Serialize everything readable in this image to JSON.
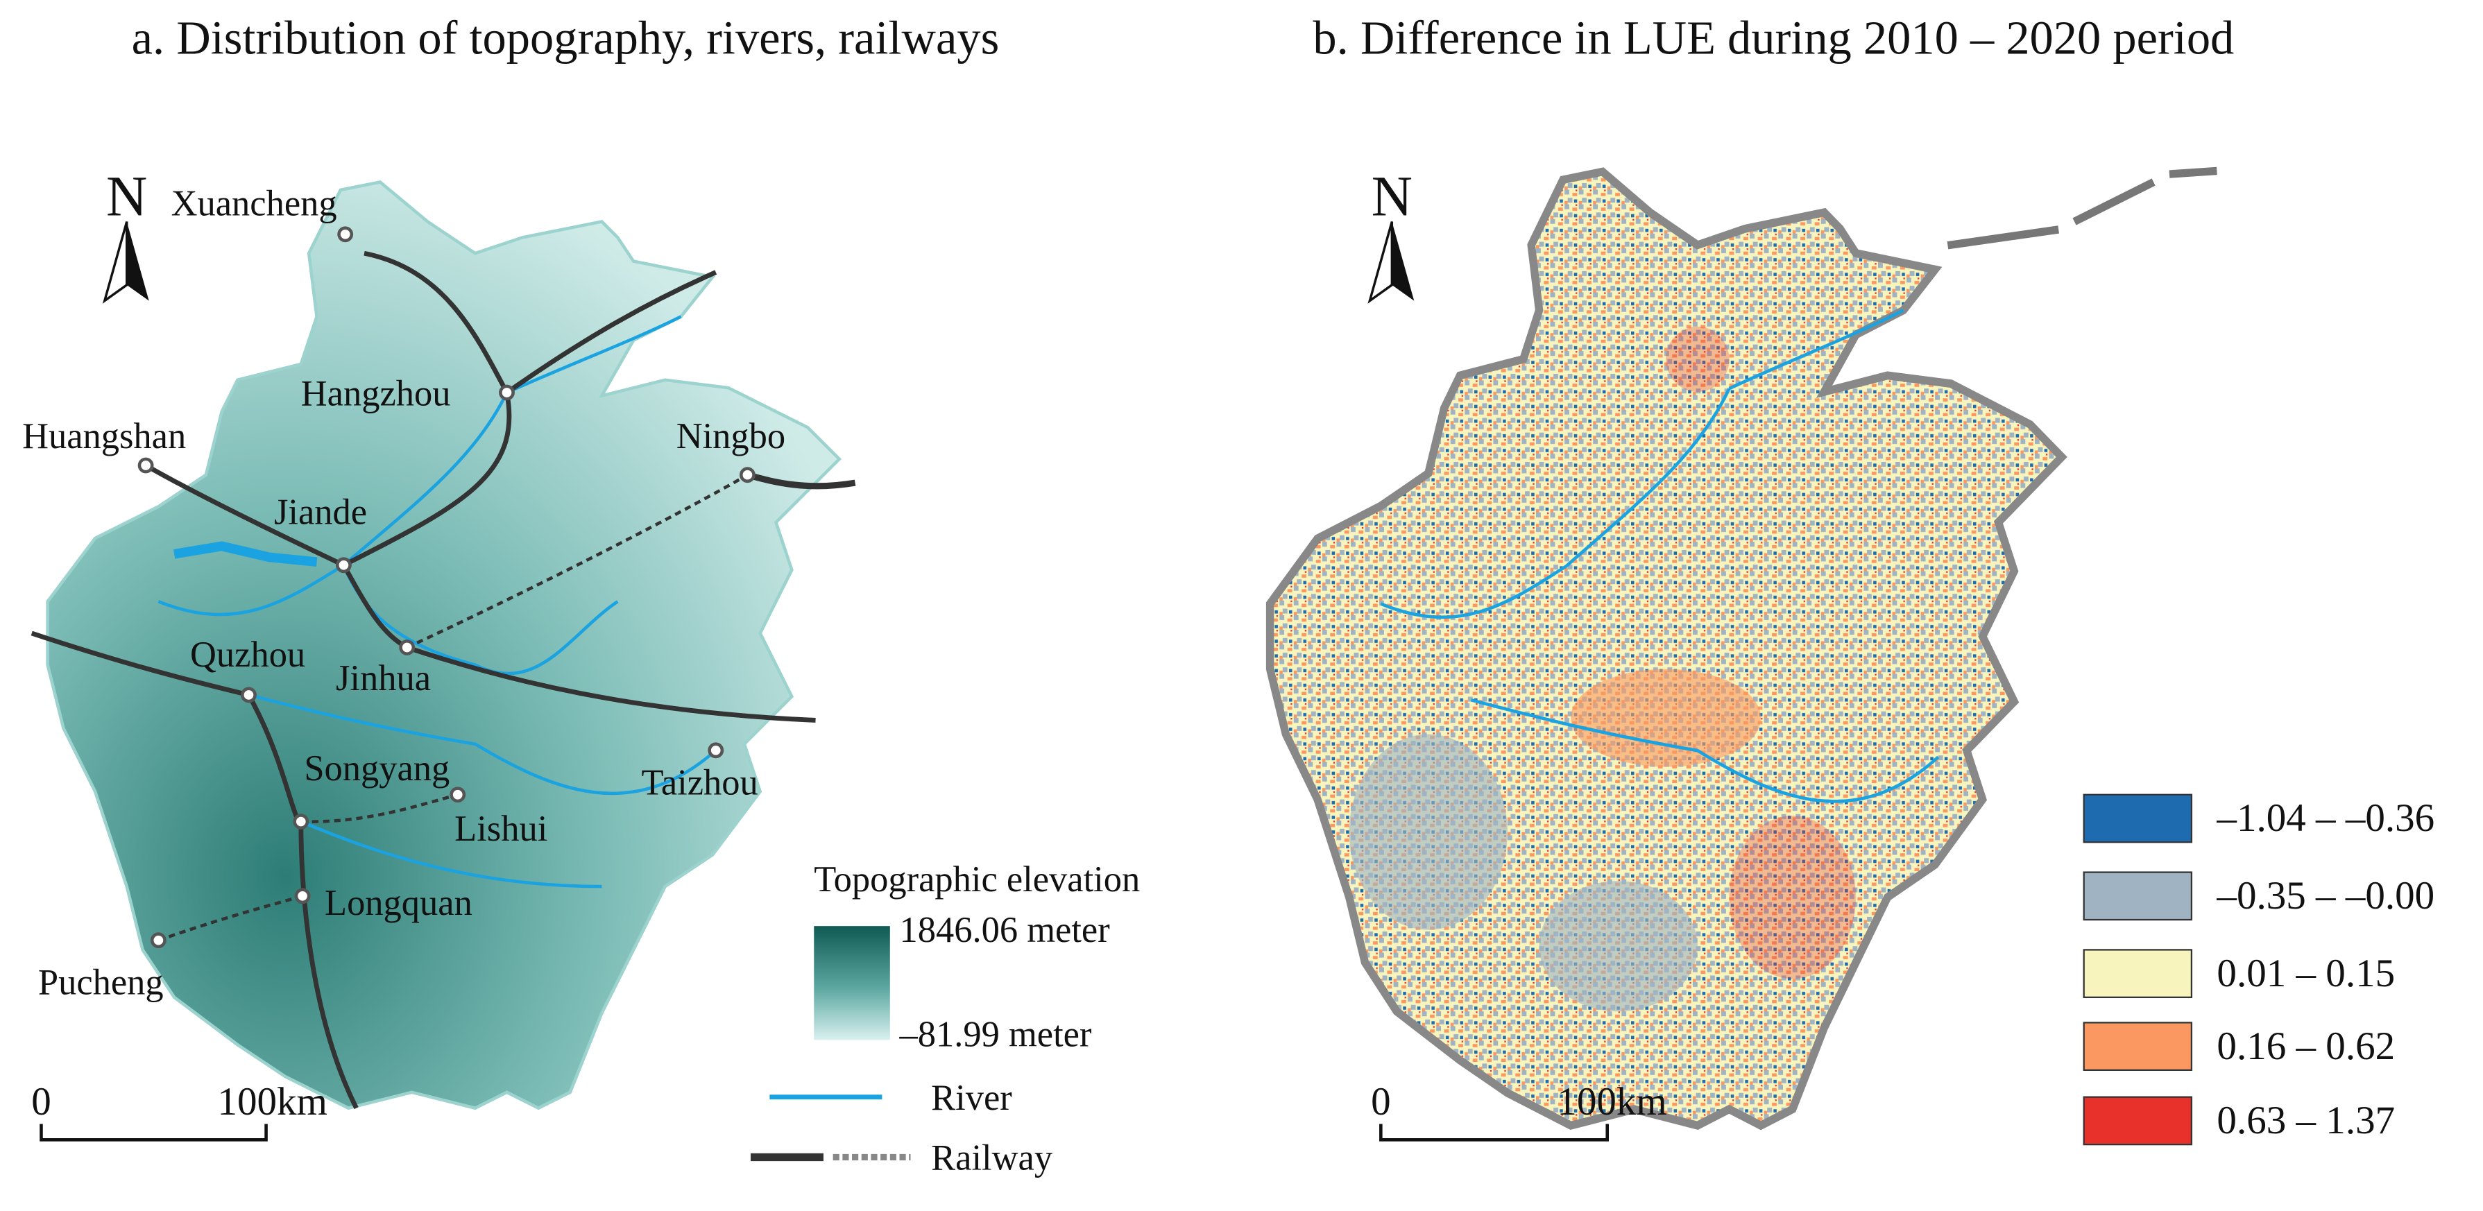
{
  "panels": [
    {
      "title": "a. Distribution of topography, rivers, railways",
      "north": "N",
      "cities": [
        "Xuancheng",
        "Hangzhou",
        "Huangshan",
        "Ningbo",
        "Jiande",
        "Quzhou",
        "Jinhua",
        "Taizhou",
        "Songyang",
        "Lishui",
        "Longquan",
        "Pucheng"
      ],
      "legend": {
        "title": "Topographic elevation",
        "max": "1846.06 meter",
        "min": "–81.99 meter",
        "river": "River",
        "railway": "Railway"
      },
      "scale": {
        "start": "0",
        "end": "100km"
      }
    },
    {
      "title": "b. Difference in LUE during 2010 – 2020 period",
      "north": "N",
      "legend": [
        {
          "label": "–1.04 – –0.36",
          "color": "#1f6bb0"
        },
        {
          "label": "–0.35 – –0.00",
          "color": "#9fb3c3"
        },
        {
          "label": "0.01 – 0.15",
          "color": "#f7f5bd"
        },
        {
          "label": "0.16 – 0.62",
          "color": "#fb9862"
        },
        {
          "label": "0.63 – 1.37",
          "color": "#e8312a"
        }
      ],
      "scale": {
        "start": "0",
        "end": "100km"
      }
    }
  ]
}
